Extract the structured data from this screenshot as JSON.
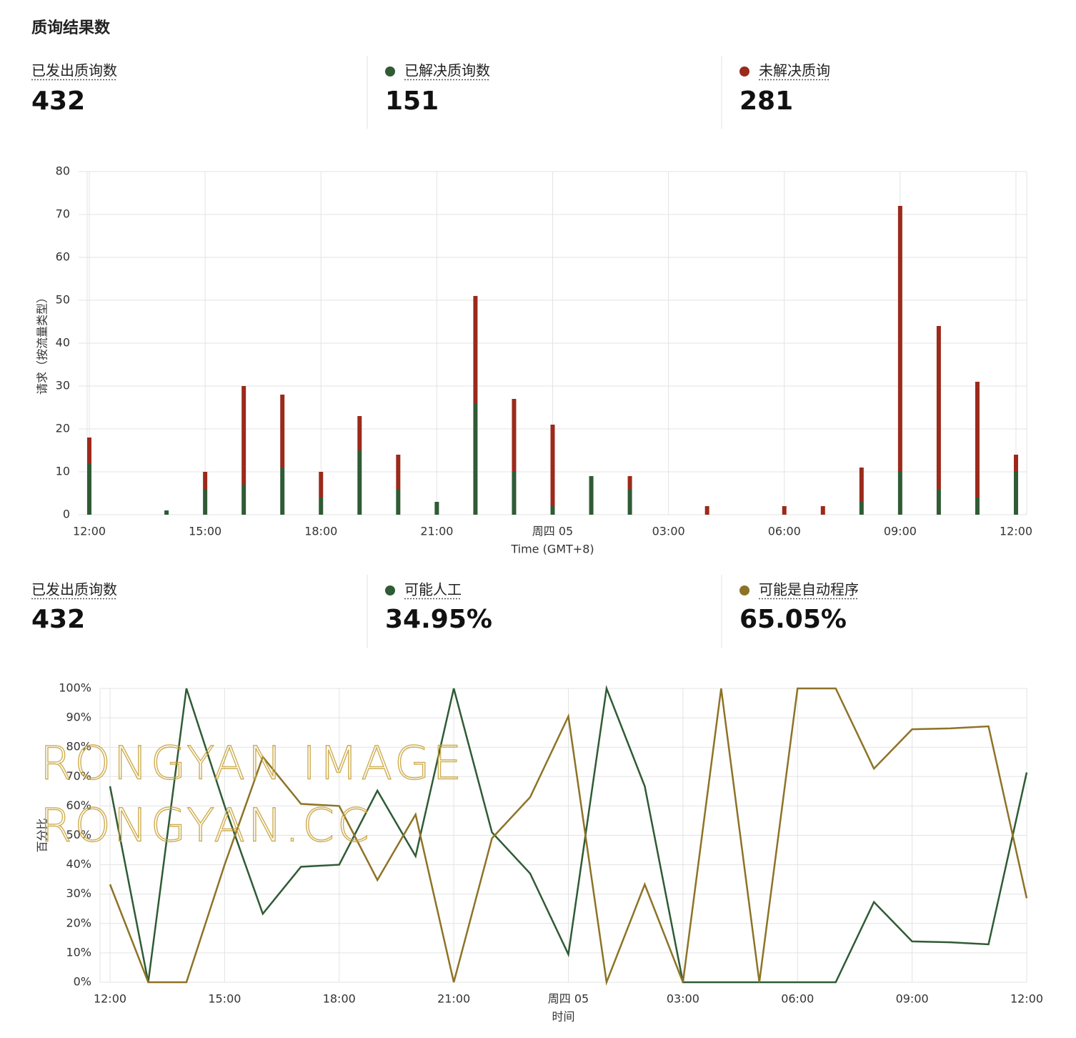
{
  "header": {
    "title": "质询结果数"
  },
  "summary_1": [
    {
      "label": "已发出质询数",
      "value": "432"
    },
    {
      "value": "151"
    },
    {
      "value": "281"
    }
  ],
  "summary_2": [
    {
      "label": "已发出质询数",
      "value": "432"
    },
    {
      "value": "34.95%"
    },
    {
      "value": "65.05%"
    }
  ],
  "watermark": [
    "RONGYAN IMAGE",
    "RONGYAN.CC"
  ],
  "chart_data": [
    {
      "type": "bar",
      "stacked": true,
      "x_label": "Time (GMT+8)",
      "y_label": "请求（按流量类型）",
      "categories": [
        "12:00",
        null,
        null,
        "15:00",
        null,
        null,
        "18:00",
        null,
        null,
        "21:00",
        null,
        null,
        "周四 05",
        null,
        null,
        "03:00",
        null,
        null,
        "06:00",
        null,
        null,
        "09:00",
        null,
        null,
        "12:00"
      ],
      "series": [
        {
          "name": "已解决质询数",
          "color": "#2f5b35",
          "values": [
            12,
            0,
            1,
            6,
            7,
            11,
            4,
            15,
            6,
            3,
            26,
            10,
            2,
            9,
            6,
            0,
            0,
            0,
            0,
            0,
            3,
            10,
            6,
            4,
            10
          ]
        },
        {
          "name": "未解决质询",
          "color": "#9b2a1b",
          "values": [
            6,
            0,
            0,
            4,
            23,
            17,
            6,
            8,
            8,
            0,
            25,
            17,
            19,
            0,
            3,
            0,
            2,
            0,
            2,
            2,
            8,
            62,
            38,
            27,
            4
          ]
        }
      ],
      "ylim": [
        0,
        80
      ],
      "yticks": [
        0,
        10,
        20,
        30,
        40,
        50,
        60,
        70,
        80
      ],
      "grid": true
    },
    {
      "type": "line",
      "x_label": "时间",
      "y_label": "百分比",
      "categories": [
        "12:00",
        null,
        null,
        "15:00",
        null,
        null,
        "18:00",
        null,
        null,
        "21:00",
        null,
        null,
        "周四 05",
        null,
        null,
        "03:00",
        null,
        null,
        "06:00",
        null,
        null,
        "09:00",
        null,
        null,
        "12:00"
      ],
      "series": [
        {
          "name": "可能人工",
          "color": "#2f5b35",
          "values": [
            66.7,
            0,
            100,
            60,
            23.3,
            39.3,
            40,
            65.2,
            42.9,
            100,
            51,
            37,
            9.5,
            100,
            66.7,
            0,
            0,
            0,
            0,
            0,
            27.3,
            13.9,
            13.6,
            12.9,
            71.4
          ]
        },
        {
          "name": "可能是自动程序",
          "color": "#8d7326",
          "values": [
            33.3,
            0,
            0,
            40,
            76.7,
            60.7,
            60,
            34.8,
            57.1,
            0,
            49,
            63,
            90.5,
            0,
            33.3,
            0,
            100,
            0,
            100,
            100,
            72.7,
            86.1,
            86.4,
            87.1,
            28.6
          ]
        }
      ],
      "ylim": [
        0,
        100
      ],
      "yticks": [
        {
          "value": 0,
          "label": "0%"
        },
        {
          "value": 10,
          "label": "10%"
        },
        {
          "value": 20,
          "label": "20%"
        },
        {
          "value": 30,
          "label": "30%"
        },
        {
          "value": 40,
          "label": "40%"
        },
        {
          "value": 50,
          "label": "50%"
        },
        {
          "value": 60,
          "label": "60%"
        },
        {
          "value": 70,
          "label": "70%"
        },
        {
          "value": 80,
          "label": "80%"
        },
        {
          "value": 90,
          "label": "90%"
        },
        {
          "value": 100,
          "label": "100%"
        }
      ],
      "grid": true
    }
  ]
}
